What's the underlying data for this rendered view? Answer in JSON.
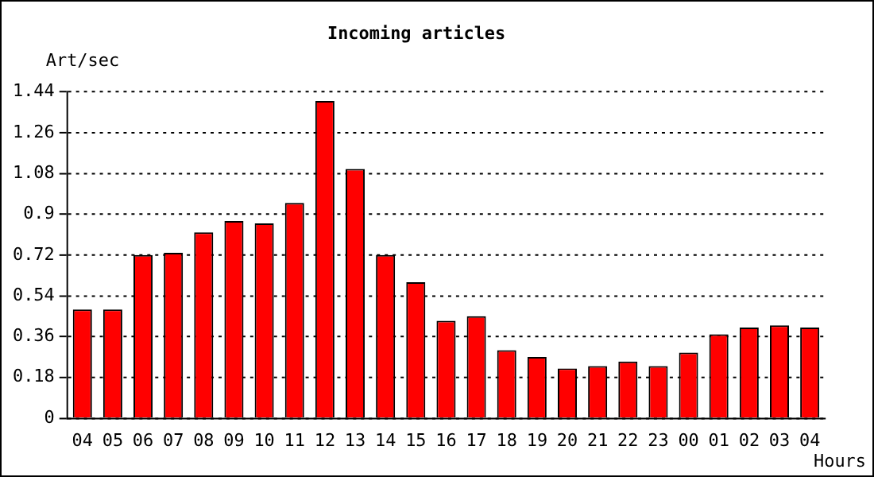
{
  "chart_data": {
    "type": "bar",
    "title": "Incoming articles",
    "xlabel": "Hours",
    "ylabel": "Art/sec",
    "categories": [
      "04",
      "05",
      "06",
      "07",
      "08",
      "09",
      "10",
      "11",
      "12",
      "13",
      "14",
      "15",
      "16",
      "17",
      "18",
      "19",
      "20",
      "21",
      "22",
      "23",
      "00",
      "01",
      "02",
      "03",
      "04"
    ],
    "values": [
      0.48,
      0.48,
      0.72,
      0.73,
      0.82,
      0.87,
      0.86,
      0.95,
      1.4,
      1.1,
      0.72,
      0.6,
      0.43,
      0.45,
      0.3,
      0.27,
      0.22,
      0.23,
      0.25,
      0.23,
      0.29,
      0.37,
      0.4,
      0.41,
      0.4
    ],
    "color": "#ff0000",
    "ylim": [
      0,
      1.44
    ],
    "yticks": [
      0,
      0.18,
      0.36,
      0.54,
      0.72,
      0.9,
      1.08,
      1.26,
      1.44
    ],
    "grid": "y"
  }
}
